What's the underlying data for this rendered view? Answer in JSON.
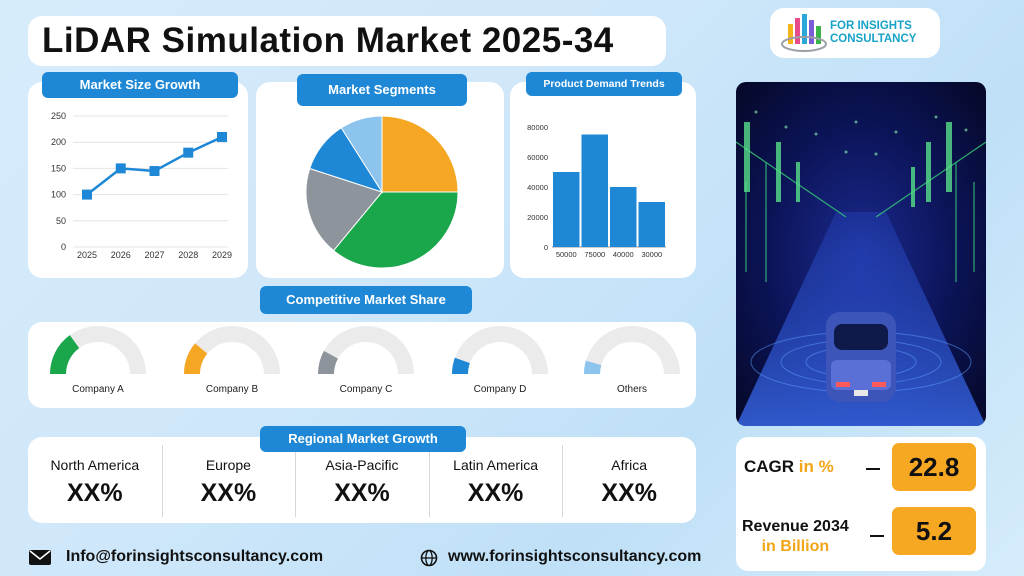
{
  "header": {
    "title": "LiDAR Simulation Market 2025-34"
  },
  "logo": {
    "line1": "FOR INSIGHTS",
    "line2": "CONSULTANCY",
    "colors": [
      "#f4b41a",
      "#e84b8a",
      "#2aa7d8",
      "#7a5cd6",
      "#39b54a"
    ]
  },
  "sections": {
    "market_size": "Market Size Growth",
    "segments": "Market Segments",
    "demand": "Product Demand Trends",
    "competitive": "Competitive Market Share",
    "regional": "Regional Market Growth"
  },
  "chart_data": [
    {
      "type": "line",
      "title": "Market Size Growth",
      "x": [
        "2025",
        "2026",
        "2027",
        "2028",
        "2029"
      ],
      "y": [
        100,
        150,
        145,
        180,
        210
      ],
      "yticks": [
        "250",
        "200",
        "150",
        "100",
        "50",
        "0"
      ],
      "ylim": [
        0,
        250
      ],
      "grid": true,
      "color": "#1e88d6"
    },
    {
      "type": "pie",
      "title": "Market Segments",
      "values": [
        25,
        36,
        19,
        11,
        9
      ],
      "colors": [
        "#f5a623",
        "#1aa64b",
        "#8e949c",
        "#1e88d6",
        "#8cc4ee"
      ]
    },
    {
      "type": "bar",
      "title": "Product Demand Trends",
      "categories": [
        "50000",
        "75000",
        "40000",
        "30000"
      ],
      "values": [
        50000,
        75000,
        40000,
        30000
      ],
      "yticks": [
        "80000",
        "60000",
        "40000",
        "20000",
        "0"
      ],
      "ylim": [
        0,
        80000
      ],
      "color": "#1e88d6"
    }
  ],
  "competitive": [
    {
      "label": "Company A",
      "share": 0.3,
      "color": "#1aa64b"
    },
    {
      "label": "Company B",
      "share": 0.22,
      "color": "#f5a623"
    },
    {
      "label": "Company C",
      "share": 0.16,
      "color": "#8e949c"
    },
    {
      "label": "Company D",
      "share": 0.11,
      "color": "#1e88d6"
    },
    {
      "label": "Others",
      "share": 0.09,
      "color": "#8cc4ee"
    }
  ],
  "regions": [
    {
      "name": "North America",
      "value": "XX%"
    },
    {
      "name": "Europe",
      "value": "XX%"
    },
    {
      "name": "Asia-Pacific",
      "value": "XX%"
    },
    {
      "name": "Latin America",
      "value": "XX%"
    },
    {
      "name": "Africa",
      "value": "XX%"
    }
  ],
  "stats": {
    "cagr_label": "CAGR",
    "cagr_unit": "in %",
    "cagr_value": "22.8",
    "revenue_label": "Revenue 2034",
    "revenue_unit": "in Billion",
    "revenue_value": "5.2"
  },
  "footer": {
    "email": "Info@forinsightsconsultancy.com",
    "website": "www.forinsightsconsultancy.com"
  }
}
